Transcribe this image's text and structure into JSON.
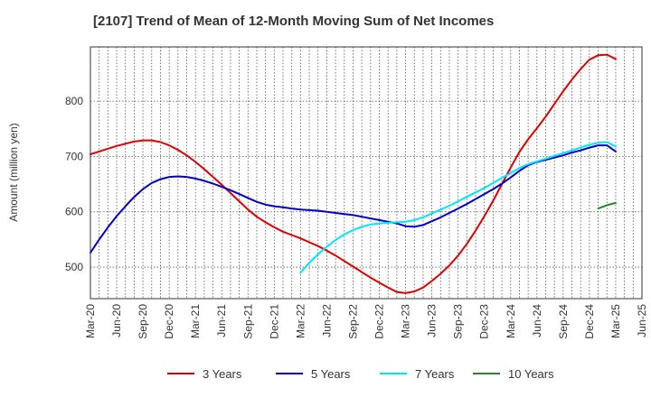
{
  "chart_data": {
    "type": "line",
    "title": "[2107]  Trend of Mean of 12-Month Moving Sum of Net Incomes",
    "xlabel": "",
    "ylabel": "Amount (million yen)",
    "x_tick_labels": [
      "Mar-20",
      "Jun-20",
      "Sep-20",
      "Dec-20",
      "Mar-21",
      "Jun-21",
      "Sep-21",
      "Dec-21",
      "Mar-22",
      "Jun-22",
      "Sep-22",
      "Dec-22",
      "Mar-23",
      "Jun-23",
      "Sep-23",
      "Dec-23",
      "Mar-24",
      "Jun-24",
      "Sep-24",
      "Dec-24",
      "Mar-25",
      "Jun-25"
    ],
    "y_ticks": [
      500,
      600,
      700,
      800
    ],
    "ylim": [
      443,
      898
    ],
    "grid": true,
    "legend_position": "bottom",
    "series": [
      {
        "name": "3 Years",
        "color": "#e00000",
        "x": [
          "Mar-20",
          "Apr-20",
          "May-20",
          "Jun-20",
          "Jul-20",
          "Aug-20",
          "Sep-20",
          "Oct-20",
          "Nov-20",
          "Dec-20",
          "Jan-21",
          "Feb-21",
          "Mar-21",
          "Apr-21",
          "May-21",
          "Jun-21",
          "Jul-21",
          "Aug-21",
          "Sep-21",
          "Oct-21",
          "Nov-21",
          "Dec-21",
          "Jan-22",
          "Feb-22",
          "Mar-22",
          "Apr-22",
          "May-22",
          "Jun-22",
          "Jul-22",
          "Aug-22",
          "Sep-22",
          "Oct-22",
          "Nov-22",
          "Dec-22",
          "Jan-23",
          "Feb-23",
          "Mar-23",
          "Apr-23",
          "May-23",
          "Jun-23",
          "Jul-23",
          "Aug-23",
          "Sep-23",
          "Oct-23",
          "Nov-23",
          "Dec-23",
          "Jan-24",
          "Feb-24",
          "Mar-24",
          "Apr-24",
          "May-24",
          "Jun-24",
          "Jul-24",
          "Aug-24",
          "Sep-24",
          "Oct-24",
          "Nov-24",
          "Dec-24",
          "Jan-25",
          "Feb-25",
          "Mar-25"
        ],
        "values": [
          704,
          709,
          714,
          719,
          723,
          727,
          729,
          729,
          726,
          720,
          712,
          702,
          690,
          677,
          663,
          649,
          634,
          619,
          604,
          591,
          581,
          572,
          564,
          558,
          552,
          545,
          538,
          530,
          521,
          511,
          501,
          491,
          481,
          472,
          463,
          455,
          453,
          456,
          463,
          475,
          488,
          503,
          521,
          542,
          566,
          592,
          620,
          650,
          680,
          708,
          731,
          751,
          772,
          795,
          818,
          839,
          858,
          875,
          883,
          884,
          876
        ]
      },
      {
        "name": "5 Years",
        "color": "#0000cc",
        "x": [
          "Mar-20",
          "Apr-20",
          "May-20",
          "Jun-20",
          "Jul-20",
          "Aug-20",
          "Sep-20",
          "Oct-20",
          "Nov-20",
          "Dec-20",
          "Jan-21",
          "Feb-21",
          "Mar-21",
          "Apr-21",
          "May-21",
          "Jun-21",
          "Jul-21",
          "Aug-21",
          "Sep-21",
          "Oct-21",
          "Nov-21",
          "Dec-21",
          "Jan-22",
          "Feb-22",
          "Mar-22",
          "Apr-22",
          "May-22",
          "Jun-22",
          "Jul-22",
          "Aug-22",
          "Sep-22",
          "Oct-22",
          "Nov-22",
          "Dec-22",
          "Jan-23",
          "Feb-23",
          "Mar-23",
          "Apr-23",
          "May-23",
          "Jun-23",
          "Jul-23",
          "Aug-23",
          "Sep-23",
          "Oct-23",
          "Nov-23",
          "Dec-23",
          "Jan-24",
          "Feb-24",
          "Mar-24",
          "Apr-24",
          "May-24",
          "Jun-24",
          "Jul-24",
          "Aug-24",
          "Sep-24",
          "Oct-24",
          "Nov-24",
          "Dec-24",
          "Jan-25",
          "Feb-25",
          "Mar-25"
        ],
        "values": [
          526,
          550,
          572,
          592,
          610,
          627,
          641,
          652,
          659,
          663,
          664,
          663,
          660,
          656,
          651,
          645,
          639,
          632,
          625,
          618,
          613,
          610,
          608,
          606,
          604,
          603,
          602,
          600,
          598,
          596,
          594,
          591,
          588,
          585,
          582,
          579,
          574,
          573,
          576,
          583,
          590,
          598,
          606,
          614,
          623,
          632,
          641,
          651,
          662,
          674,
          684,
          690,
          694,
          698,
          702,
          707,
          711,
          716,
          720,
          720,
          709
        ]
      },
      {
        "name": "7 Years",
        "color": "#00e5ff",
        "x": [
          "Mar-22",
          "Apr-22",
          "May-22",
          "Jun-22",
          "Jul-22",
          "Aug-22",
          "Sep-22",
          "Oct-22",
          "Nov-22",
          "Dec-22",
          "Jan-23",
          "Feb-23",
          "Mar-23",
          "Apr-23",
          "May-23",
          "Jun-23",
          "Jul-23",
          "Aug-23",
          "Sep-23",
          "Oct-23",
          "Nov-23",
          "Dec-23",
          "Jan-24",
          "Feb-24",
          "Mar-24",
          "Apr-24",
          "May-24",
          "Jun-24",
          "Jul-24",
          "Aug-24",
          "Sep-24",
          "Oct-24",
          "Nov-24",
          "Dec-24",
          "Jan-25",
          "Feb-25",
          "Mar-25"
        ],
        "values": [
          490,
          508,
          523,
          537,
          549,
          559,
          567,
          573,
          577,
          579,
          580,
          581,
          582,
          585,
          590,
          597,
          604,
          611,
          619,
          627,
          635,
          643,
          652,
          661,
          670,
          679,
          686,
          691,
          696,
          701,
          706,
          711,
          716,
          721,
          725,
          726,
          718
        ]
      },
      {
        "name": "10 Years",
        "color": "#228b22",
        "x": [
          "Jan-25",
          "Feb-25",
          "Mar-25"
        ],
        "values": [
          606,
          612,
          616
        ]
      }
    ]
  }
}
